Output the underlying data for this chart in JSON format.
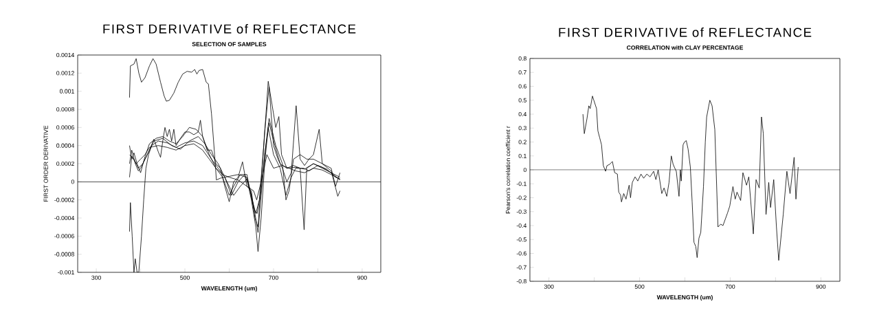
{
  "chart_data": [
    {
      "type": "line",
      "title": "FIRST DERIVATIVE of REFLECTANCE",
      "subtitle": "SELECTION OF SAMPLES",
      "xlabel": "WAVELENGTH (um)",
      "ylabel": "FIRST ORDER DERIVATIVE",
      "xlim": [
        258,
        942
      ],
      "ylim": [
        -0.001,
        0.0014
      ],
      "xticks": [
        300,
        {
          "value": 400,
          "label": null
        },
        500,
        {
          "value": 600,
          "label": null
        },
        700,
        {
          "value": 800,
          "label": null
        },
        900
      ],
      "yticks": [
        -0.001,
        -0.0008,
        -0.0006,
        -0.0004,
        -0.0002,
        0,
        0.0002,
        0.0004,
        0.0006,
        0.0008,
        0.001,
        0.0012,
        0.0014
      ],
      "ref_lines": [
        {
          "axis": "y",
          "value": 0
        }
      ],
      "series": [
        {
          "color": "#000000",
          "x": [
            375,
            377,
            385,
            390,
            396,
            402,
            410,
            420,
            428,
            435,
            445,
            453,
            458,
            465,
            475,
            485,
            495,
            505,
            515,
            522,
            527,
            532,
            540,
            548,
            553,
            560,
            567,
            571,
            580,
            600,
            620,
            640,
            652,
            660,
            668,
            678,
            688,
            695,
            705,
            712,
            718,
            730,
            750,
            770,
            790,
            810,
            830,
            850
          ],
          "values": [
            0.00093,
            0.00128,
            0.0013,
            0.00136,
            0.0012,
            0.0011,
            0.00115,
            0.00128,
            0.00136,
            0.0013,
            0.0011,
            0.00095,
            0.00089,
            0.0009,
            0.00098,
            0.0011,
            0.00119,
            0.00122,
            0.00121,
            0.00124,
            0.00119,
            0.00123,
            0.00124,
            0.0011,
            0.00108,
            0.00075,
            0.0003,
            2e-05,
            4e-05,
            6e-05,
            8e-05,
            5e-05,
            -0.0002,
            -0.00035,
            -0.0002,
            0.0004,
            0.00111,
            0.0009,
            0.0006,
            0.00072,
            0.0003,
            0.00015,
            0.00016,
            0.00014,
            0.0002,
            0.00016,
            0.0001,
            5e-05
          ]
        },
        {
          "color": "#000000",
          "x": [
            375,
            377,
            381,
            385,
            388,
            392,
            396,
            402,
            407,
            412,
            418,
            425,
            440,
            460,
            480,
            500,
            520,
            540,
            560,
            575,
            590,
            600,
            610,
            625,
            640,
            650,
            660,
            665,
            672,
            680,
            688,
            700,
            715,
            728,
            740,
            750,
            768,
            780,
            800,
            820,
            840,
            850
          ],
          "values": [
            -0.00055,
            -0.00023,
            -0.0006,
            -0.001,
            -0.00085,
            -0.001,
            -0.001,
            -0.0006,
            -0.0002,
            0.00015,
            0.0003,
            0.0004,
            0.00045,
            0.00043,
            0.00038,
            0.00043,
            0.00045,
            0.0004,
            0.00025,
            0.00015,
            5e-05,
            -5e-05,
            -0.00015,
            -5e-05,
            3e-05,
            -0.0002,
            -0.0005,
            -0.00077,
            -0.0004,
            0.0002,
            0.0006,
            0.0003,
            0.00015,
            -0.00015,
            5e-05,
            0.00015,
            0.00015,
            0.00012,
            0.00018,
            0.00014,
            5e-05,
            3e-05
          ]
        },
        {
          "color": "#000000",
          "x": [
            375,
            380,
            388,
            395,
            400,
            410,
            420,
            430,
            440,
            445,
            450,
            455,
            460,
            465,
            470,
            475,
            480,
            490,
            500,
            510,
            520,
            530,
            535,
            540,
            550,
            560,
            570,
            580,
            590,
            600,
            610,
            620,
            630,
            640,
            650,
            658,
            665,
            672,
            680,
            690,
            700,
            710,
            720,
            730,
            740,
            751,
            760,
            770,
            780,
            790,
            803,
            810,
            830,
            845,
            850
          ],
          "values": [
            0.0002,
            0.00035,
            0.0002,
            0.00012,
            0.00015,
            0.00025,
            0.00035,
            0.00047,
            0.00033,
            0.00027,
            0.00045,
            0.0006,
            0.0005,
            0.00058,
            0.00045,
            0.00058,
            0.0004,
            0.00048,
            0.00055,
            0.00055,
            0.00052,
            0.00055,
            0.00068,
            0.0005,
            0.00035,
            0.00035,
            0.0002,
            0.00015,
            -5e-05,
            -0.00022,
            0,
            5e-05,
            0.00022,
            -5e-05,
            -0.0001,
            -0.0004,
            -0.0005,
            0,
            0.00055,
            0.00105,
            0.0004,
            0.00025,
            0.00015,
            0,
            0.0001,
            0.00084,
            0.00025,
            0.00018,
            0.00025,
            0.0003,
            0.00058,
            0.0002,
            0.00012,
            -0.00016,
            -0.0001
          ]
        },
        {
          "color": "#000000",
          "x": [
            375,
            380,
            385,
            392,
            400,
            410,
            420,
            435,
            450,
            465,
            480,
            495,
            510,
            525,
            540,
            555,
            570,
            585,
            600,
            610,
            625,
            640,
            655,
            663,
            672,
            680,
            690,
            700,
            715,
            730,
            745,
            760,
            769,
            775,
            790,
            810,
            830,
            850
          ],
          "values": [
            0.0004,
            0.00025,
            0.00032,
            0.0002,
            0.0001,
            0.00028,
            0.00042,
            0.00048,
            0.0005,
            0.00045,
            0.00042,
            0.0005,
            0.0006,
            0.00058,
            0.0005,
            0.0003,
            0.00015,
            5e-05,
            -0.00015,
            -5e-05,
            8e-05,
            8e-05,
            -0.0003,
            -0.00035,
            -0.0001,
            0.0003,
            0.00065,
            0.00045,
            0.0002,
            0.00015,
            0.00018,
            0.00015,
            -0.00053,
            0.00015,
            0.0002,
            0.00015,
            0.0001,
            2e-05
          ]
        },
        {
          "color": "#000000",
          "x": [
            375,
            380,
            390,
            400,
            410,
            420,
            440,
            460,
            480,
            500,
            520,
            540,
            555,
            570,
            585,
            600,
            620,
            640,
            655,
            662,
            672,
            685,
            700,
            720,
            735,
            750,
            770,
            790,
            810,
            830,
            850
          ],
          "values": [
            5e-05,
            0.00028,
            0.0002,
            0.00025,
            0.0003,
            0.00038,
            0.0004,
            0.00038,
            0.00035,
            0.0004,
            0.00042,
            0.00035,
            0.00025,
            0.00015,
            8e-05,
            5e-05,
            2e-05,
            -5e-05,
            -0.0001,
            -0.0002,
            0,
            0.0003,
            0.00015,
            0.00018,
            0.00015,
            0.00012,
            0.0001,
            0.00015,
            0.00013,
            8e-05,
            3e-05
          ]
        },
        {
          "color": "#000000",
          "x": [
            375,
            385,
            395,
            405,
            415,
            430,
            450,
            470,
            490,
            510,
            530,
            545,
            560,
            575,
            590,
            605,
            620,
            635,
            648,
            658,
            665,
            672,
            680,
            690,
            705,
            720,
            728,
            735,
            745,
            760,
            775,
            790,
            810,
            830,
            840,
            850
          ],
          "values": [
            0.0003,
            0.00025,
            0.00015,
            0.0002,
            0.0003,
            0.00045,
            0.00048,
            0.0004,
            0.00036,
            0.00045,
            0.0005,
            0.00042,
            0.0003,
            0.0002,
            5e-05,
            -0.00015,
            0,
            8e-05,
            -0.0001,
            -0.00035,
            -0.00056,
            -0.00015,
            0.0003,
            0.0007,
            0.0004,
            0.0002,
            -0.0002,
            -0.0001,
            0.00025,
            0.0003,
            0.00025,
            0.00025,
            0.0002,
            0.00015,
            -5e-05,
            0.0001
          ]
        }
      ]
    },
    {
      "type": "line",
      "title": "FIRST DERIVATIVE of REFLECTANCE",
      "subtitle": "CORRELATION with CLAY PERCENTAGE",
      "xlabel": "WAVELENGTH (um)",
      "ylabel": "Pearson's correlation coefficient r",
      "xlim": [
        258,
        942
      ],
      "ylim": [
        -0.8,
        0.8
      ],
      "xticks": [
        300,
        {
          "value": 400,
          "label": null
        },
        500,
        {
          "value": 600,
          "label": null
        },
        700,
        {
          "value": 800,
          "label": null
        },
        900
      ],
      "yticks": [
        -0.8,
        -0.7,
        -0.6,
        -0.5,
        -0.4,
        -0.3,
        -0.2,
        -0.1,
        0,
        0.1,
        0.2,
        0.3,
        0.4,
        0.5,
        0.6,
        0.7,
        0.8
      ],
      "ref_lines": [
        {
          "axis": "y",
          "value": 0
        }
      ],
      "color": "#000000",
      "x": [
        375,
        378,
        384,
        388,
        391,
        396,
        399,
        405,
        408,
        412,
        416,
        420,
        425,
        428,
        434,
        440,
        445,
        451,
        454,
        458,
        460,
        465,
        470,
        477,
        480,
        484,
        490,
        496,
        503,
        509,
        516,
        523,
        531,
        536,
        541,
        549,
        554,
        560,
        565,
        570,
        574,
        578,
        581,
        587,
        590,
        592,
        596,
        599,
        603,
        607,
        612,
        616,
        620,
        624,
        627,
        631,
        635,
        641,
        645,
        648,
        655,
        660,
        666,
        673,
        679,
        684,
        694,
        699,
        706,
        711,
        715,
        719,
        723,
        728,
        736,
        741,
        751,
        757,
        764,
        769,
        773,
        779,
        785,
        789,
        796,
        802,
        807,
        817,
        825,
        832,
        841,
        845,
        850
      ],
      "values": [
        0.4,
        0.26,
        0.37,
        0.46,
        0.44,
        0.53,
        0.5,
        0.44,
        0.28,
        0.23,
        0.18,
        0.03,
        -0.01,
        0.03,
        0.04,
        0.06,
        -0.02,
        -0.03,
        -0.16,
        -0.18,
        -0.23,
        -0.17,
        -0.21,
        -0.11,
        -0.2,
        -0.09,
        -0.05,
        -0.08,
        -0.03,
        -0.06,
        -0.03,
        -0.05,
        -0.01,
        -0.07,
        0.0,
        -0.17,
        -0.13,
        -0.19,
        -0.09,
        0.1,
        0.04,
        0.01,
        -0.01,
        -0.19,
        0.0,
        -0.08,
        0.18,
        0.2,
        0.21,
        0.15,
        0.02,
        -0.23,
        -0.52,
        -0.55,
        -0.63,
        -0.49,
        -0.45,
        -0.12,
        0.2,
        0.38,
        0.5,
        0.46,
        0.29,
        -0.41,
        -0.39,
        -0.4,
        -0.31,
        -0.26,
        -0.12,
        -0.21,
        -0.16,
        -0.19,
        -0.22,
        -0.02,
        -0.11,
        -0.05,
        -0.46,
        -0.07,
        -0.13,
        0.38,
        0.26,
        -0.32,
        -0.09,
        -0.27,
        -0.07,
        -0.41,
        -0.65,
        -0.32,
        -0.01,
        -0.17,
        0.09,
        -0.21,
        0.02
      ]
    }
  ]
}
